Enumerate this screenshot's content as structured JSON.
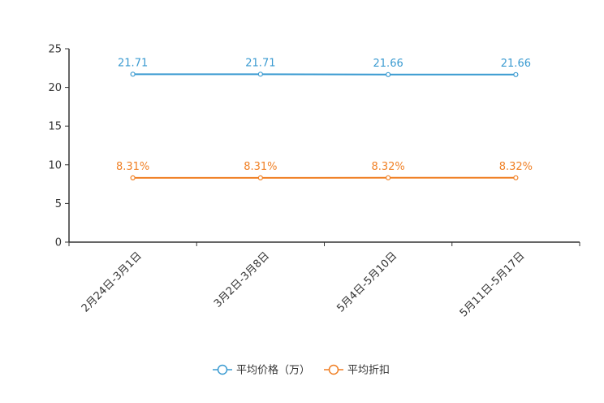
{
  "chart_data": {
    "type": "line",
    "categories": [
      "2月24日-3月1日",
      "3月2日-3月8日",
      "5月4日-5月10日",
      "5月11日-5月17日"
    ],
    "series": [
      {
        "name": "平均价格（万）",
        "values": [
          21.71,
          21.71,
          21.66,
          21.66
        ],
        "labels": [
          "21.71",
          "21.71",
          "21.66",
          "21.66"
        ],
        "color": "#3b9bd1"
      },
      {
        "name": "平均折扣",
        "values": [
          8.31,
          8.31,
          8.32,
          8.32
        ],
        "labels": [
          "8.31%",
          "8.31%",
          "8.32%",
          "8.32%"
        ],
        "color": "#f07f23"
      }
    ],
    "ylim": [
      0,
      25
    ],
    "yticks": [
      "0",
      "5",
      "10",
      "15",
      "20",
      "25"
    ],
    "ytick_values": [
      0,
      5,
      10,
      15,
      20,
      25
    ],
    "legend_position": "bottom-center",
    "title": "",
    "xlabel": "",
    "ylabel": ""
  },
  "colors": {
    "axis": "#333333",
    "background": "#ffffff"
  }
}
